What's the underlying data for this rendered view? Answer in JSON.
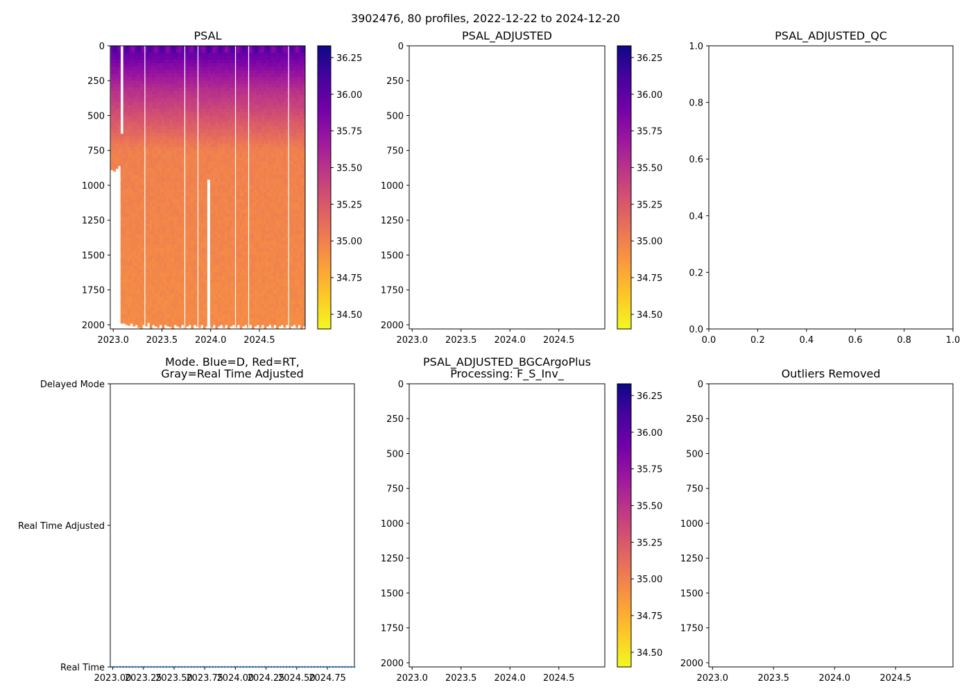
{
  "figure": {
    "suptitle": "3902476, 80 profiles, 2022-12-22 to 2024-12-20"
  },
  "colors": {
    "plasma_stops": [
      "#0d0887",
      "#46039f",
      "#7201a8",
      "#9c179e",
      "#bd3786",
      "#d8576b",
      "#ed7953",
      "#fb9f3a",
      "#fdca26",
      "#f0f921"
    ],
    "mode_dots": "#1f77b4"
  },
  "chart_data": [
    {
      "id": "psal",
      "type": "heatmap",
      "title": "PSAL",
      "xlim": [
        2022.97,
        2024.97
      ],
      "ylim": [
        2030,
        0
      ],
      "xticks": [
        2023.0,
        2023.5,
        2024.0,
        2024.5
      ],
      "xtick_labels": [
        "2023.0",
        "2023.5",
        "2024.0",
        "2024.5"
      ],
      "yticks": [
        0,
        250,
        500,
        750,
        1000,
        1250,
        1500,
        1750,
        2000
      ],
      "ytick_labels": [
        "0",
        "250",
        "500",
        "750",
        "1000",
        "1250",
        "1500",
        "1750",
        "2000"
      ],
      "n_profiles": 80,
      "start_year": 2022.975,
      "end_year": 2024.97,
      "field": "salinity (psu), ~35.9-36.3 near surface, ~35.5 at 100-300 dbar, ~34.95 below 700 dbar",
      "max_depth_per_profile": [
        890,
        900,
        880,
        860,
        1990,
        1990,
        2000,
        2005,
        1990,
        2010,
        2000,
        2020,
        2030,
        2000,
        2010,
        1985,
        2030,
        2000,
        2010,
        2020,
        2000,
        2030,
        2000,
        2010,
        2015,
        2030,
        2000,
        2010,
        2020,
        2000,
        2030,
        2010,
        2000,
        2025,
        2000,
        2010,
        2020,
        2000,
        2030,
        2010,
        2000,
        2020,
        2000,
        2030,
        2010,
        2000,
        2020,
        2000,
        2030,
        2010,
        2000,
        2020,
        2000,
        2025,
        2010,
        2000,
        2020,
        2000,
        2030,
        2010,
        2000,
        2020,
        2000,
        2030,
        2010,
        2000,
        2020,
        2000,
        2030,
        2010,
        2000,
        2020,
        2000,
        2030,
        2010,
        2000,
        2020,
        2000,
        2030,
        2010
      ],
      "partial_profile": {
        "year": 2023.09,
        "top_depth": 630
      },
      "gap_columns": [
        2023.325,
        2023.735,
        2023.87,
        2024.255,
        2024.39,
        2024.8
      ],
      "gap_profile": {
        "year": 2023.98,
        "top_depth": 960
      },
      "colorbar": {
        "range": [
          34.4,
          36.33
        ],
        "ticks": [
          34.5,
          34.75,
          35.0,
          35.25,
          35.5,
          35.75,
          36.0,
          36.25
        ],
        "tick_labels": [
          "34.50",
          "34.75",
          "35.00",
          "35.25",
          "35.50",
          "35.75",
          "36.00",
          "36.25"
        ]
      }
    },
    {
      "id": "psal_adj",
      "type": "heatmap",
      "title": "PSAL_ADJUSTED",
      "xlim": [
        2022.97,
        2024.97
      ],
      "ylim": [
        2030,
        0
      ],
      "xticks": [
        2023.0,
        2023.5,
        2024.0,
        2024.5
      ],
      "xtick_labels": [
        "2023.0",
        "2023.5",
        "2024.0",
        "2024.5"
      ],
      "yticks": [
        0,
        250,
        500,
        750,
        1000,
        1250,
        1500,
        1750,
        2000
      ],
      "ytick_labels": [
        "0",
        "250",
        "500",
        "750",
        "1000",
        "1250",
        "1500",
        "1750",
        "2000"
      ],
      "empty": true,
      "colorbar": {
        "range": [
          34.4,
          36.33
        ],
        "ticks": [
          34.5,
          34.75,
          35.0,
          35.25,
          35.5,
          35.75,
          36.0,
          36.25
        ],
        "tick_labels": [
          "34.50",
          "34.75",
          "35.00",
          "35.25",
          "35.50",
          "35.75",
          "36.00",
          "36.25"
        ]
      }
    },
    {
      "id": "psal_qc",
      "type": "scatter",
      "title": "PSAL_ADJUSTED_QC",
      "xlim": [
        0,
        1
      ],
      "ylim": [
        0,
        1
      ],
      "xticks": [
        0,
        0.2,
        0.4,
        0.6,
        0.8,
        1.0
      ],
      "xtick_labels": [
        "0.0",
        "0.2",
        "0.4",
        "0.6",
        "0.8",
        "1.0"
      ],
      "yticks": [
        0,
        0.2,
        0.4,
        0.6,
        0.8,
        1.0
      ],
      "ytick_labels": [
        "0.0",
        "0.2",
        "0.4",
        "0.6",
        "0.8",
        "1.0"
      ],
      "empty": true
    },
    {
      "id": "mode",
      "type": "scatter",
      "title": "Mode. Blue=D, Red=RT,",
      "title2": "Gray=Real Time Adjusted",
      "xlim": [
        2022.98,
        2024.97
      ],
      "ylim": [
        0,
        2
      ],
      "xticks": [
        2023.0,
        2023.25,
        2023.5,
        2023.75,
        2024.0,
        2024.25,
        2024.5,
        2024.75
      ],
      "xtick_labels": [
        "2023.00",
        "2023.25",
        "2023.50",
        "2023.75",
        "2024.00",
        "2024.25",
        "2024.50",
        "2024.75"
      ],
      "yticks": [
        0,
        1,
        2
      ],
      "ytick_labels": [
        "Real Time",
        "Real Time Adjusted",
        "Delayed Mode"
      ],
      "series": [
        {
          "name": "profiles",
          "y_level": 0,
          "n_points": 80,
          "x_start": 2022.985,
          "x_end": 2024.97
        }
      ]
    },
    {
      "id": "bgc",
      "type": "heatmap",
      "title": "PSAL_ADJUSTED_BGCArgoPlus",
      "title2": "Processing: F_S_Inv_",
      "xlim": [
        2022.97,
        2024.97
      ],
      "ylim": [
        2030,
        0
      ],
      "xticks": [
        2023.0,
        2023.5,
        2024.0,
        2024.5
      ],
      "xtick_labels": [
        "2023.0",
        "2023.5",
        "2024.0",
        "2024.5"
      ],
      "yticks": [
        0,
        250,
        500,
        750,
        1000,
        1250,
        1500,
        1750,
        2000
      ],
      "ytick_labels": [
        "0",
        "250",
        "500",
        "750",
        "1000",
        "1250",
        "1500",
        "1750",
        "2000"
      ],
      "empty": true,
      "colorbar": {
        "range": [
          34.4,
          36.33
        ],
        "ticks": [
          34.5,
          34.75,
          35.0,
          35.25,
          35.5,
          35.75,
          36.0,
          36.25
        ],
        "tick_labels": [
          "34.50",
          "34.75",
          "35.00",
          "35.25",
          "35.50",
          "35.75",
          "36.00",
          "36.25"
        ]
      }
    },
    {
      "id": "outliers",
      "type": "scatter",
      "title": "Outliers Removed",
      "xlim": [
        2022.97,
        2024.97
      ],
      "ylim": [
        2030,
        0
      ],
      "xticks": [
        2023.0,
        2023.5,
        2024.0,
        2024.5
      ],
      "xtick_labels": [
        "2023.0",
        "2023.5",
        "2024.0",
        "2024.5"
      ],
      "yticks": [
        0,
        250,
        500,
        750,
        1000,
        1250,
        1500,
        1750,
        2000
      ],
      "ytick_labels": [
        "0",
        "250",
        "500",
        "750",
        "1000",
        "1250",
        "1500",
        "1750",
        "2000"
      ],
      "empty": true
    }
  ]
}
